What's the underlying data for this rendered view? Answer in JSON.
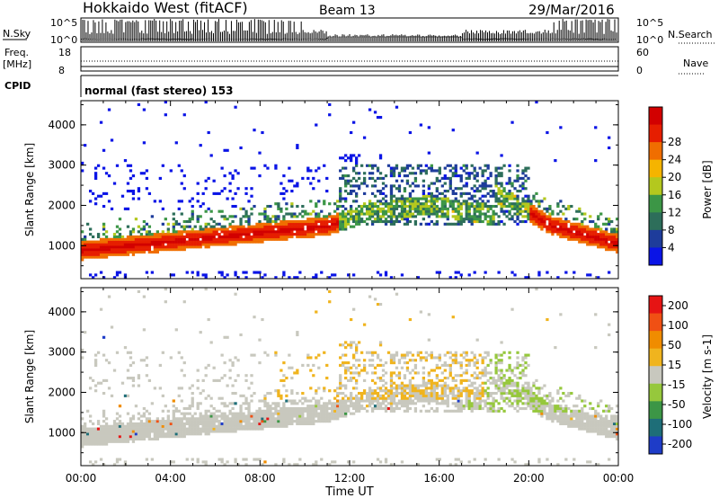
{
  "header": {
    "title": "Hokkaido West (fitACF)",
    "beam": "Beam 13",
    "date": "29/Mar/2016"
  },
  "status_panels": {
    "nsky_label": "N.Sky",
    "nsearch_label": "N.Search",
    "freq_label_line1": "Freq.",
    "freq_label_line2": "[MHz]",
    "nave_label": "Nave",
    "cpid_label": "CPID",
    "cpid_text": "normal (fast stereo) 153",
    "noise_ticks": [
      "10^5",
      "10^0"
    ],
    "freq_ticks": [
      "18",
      "8"
    ],
    "nave_ticks": [
      "60",
      "0"
    ]
  },
  "colors": {
    "power": [
      "#0a14e6",
      "#1e3c9b",
      "#2d6e5a",
      "#3c9646",
      "#b4c81e",
      "#f5b400",
      "#f06e00",
      "#e61e00",
      "#d20000"
    ],
    "velocity": [
      "#1e3cc8",
      "#1e6e78",
      "#3c9646",
      "#96c83c",
      "#c8c8be",
      "#f0b41e",
      "#f08c00",
      "#f05014",
      "#e61414"
    ],
    "gray_level": "#c8c8be"
  },
  "chart_data": [
    {
      "type": "heatmap",
      "name": "power",
      "ylabel": "Slant Range [km]",
      "xlabel": "",
      "ylim": [
        180,
        4600
      ],
      "yticks": [
        1000,
        2000,
        3000,
        4000
      ],
      "x_ticks": [
        "00:00",
        "04:00",
        "08:00",
        "12:00",
        "16:00",
        "20:00",
        "00:00"
      ],
      "x_range_hours": [
        0,
        24
      ],
      "colorbar": {
        "label": "Power [dB]",
        "ticks": [
          "4",
          "8",
          "12",
          "16",
          "20",
          "24",
          "28"
        ],
        "range": [
          0,
          32
        ]
      },
      "features": [
        {
          "kind": "band",
          "start_hour": 0.0,
          "end_hour": 11.0,
          "start_km": 850,
          "end_km": 1550,
          "value_db": 24
        },
        {
          "kind": "band",
          "start_hour": 12.5,
          "end_hour": 18.5,
          "start_km": 1700,
          "end_km": 2600,
          "value_db": 8
        },
        {
          "kind": "band",
          "start_hour": 20.5,
          "end_hour": 24.0,
          "start_km": 1700,
          "end_km": 1000,
          "value_db": 22
        }
      ]
    },
    {
      "type": "heatmap",
      "name": "velocity",
      "ylabel": "Slant Range [km]",
      "xlabel": "Time UT",
      "ylim": [
        180,
        4600
      ],
      "yticks": [
        1000,
        2000,
        3000,
        4000
      ],
      "x_ticks": [
        "00:00",
        "04:00",
        "08:00",
        "12:00",
        "16:00",
        "20:00",
        "00:00"
      ],
      "x_range_hours": [
        0,
        24
      ],
      "colorbar": {
        "label": "Velocity [m s-1]",
        "ticks": [
          "200",
          "100",
          "50",
          "15",
          "-15",
          "-50",
          "-100",
          "-200"
        ]
      }
    }
  ]
}
